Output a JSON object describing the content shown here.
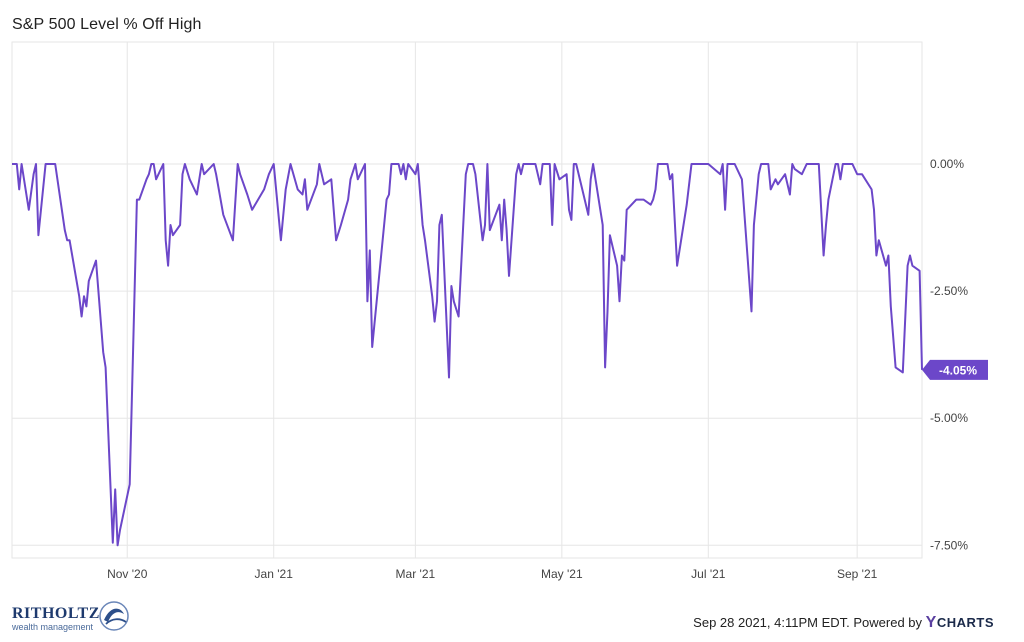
{
  "title": "S&P 500 Level % Off High",
  "footer": {
    "timestamp": "Sep 28 2021, 4:11PM EDT.",
    "powered_by": "Powered by",
    "brand": "CHARTS",
    "brand_y": "Y"
  },
  "logo": {
    "name": "RITHOLTZ",
    "sub": "wealth management"
  },
  "colors": {
    "line": "#6c47c9",
    "grid": "#e6e6e6",
    "badge": "#6c47c9"
  },
  "chart_data": {
    "type": "line",
    "title": "S&P 500 Level % Off High",
    "xlabel": "",
    "ylabel": "",
    "x_ticks": [
      "Nov '20",
      "Jan '21",
      "Mar '21",
      "May '21",
      "Jul '21",
      "Sep '21"
    ],
    "y_ticks": [
      "0.00%",
      "-2.50%",
      "-5.00%",
      "-7.50%"
    ],
    "y_tick_values": [
      0,
      -2.5,
      -5,
      -7.5
    ],
    "ylim": [
      -7.75,
      2.4
    ],
    "xlim": [
      "2020-09-14",
      "2021-09-28"
    ],
    "grid": true,
    "last_value_label": "-4.05%",
    "series": [
      {
        "values": [
          [
            "2020-09-14",
            0
          ],
          [
            "2020-09-16",
            0
          ],
          [
            "2020-09-17",
            -0.5
          ],
          [
            "2020-09-18",
            0
          ],
          [
            "2020-09-21",
            -0.9
          ],
          [
            "2020-09-23",
            -0.2
          ],
          [
            "2020-09-24",
            0
          ],
          [
            "2020-09-25",
            -1.4
          ],
          [
            "2020-09-28",
            0
          ],
          [
            "2020-10-02",
            0
          ],
          [
            "2020-10-06",
            -1.3
          ],
          [
            "2020-10-07",
            -1.5
          ],
          [
            "2020-10-08",
            -1.5
          ],
          [
            "2020-10-12",
            -2.6
          ],
          [
            "2020-10-13",
            -3.0
          ],
          [
            "2020-10-14",
            -2.6
          ],
          [
            "2020-10-15",
            -2.8
          ],
          [
            "2020-10-16",
            -2.3
          ],
          [
            "2020-10-19",
            -1.9
          ],
          [
            "2020-10-22",
            -3.7
          ],
          [
            "2020-10-23",
            -4.0
          ],
          [
            "2020-10-26",
            -7.45
          ],
          [
            "2020-10-27",
            -6.4
          ],
          [
            "2020-10-28",
            -7.5
          ],
          [
            "2020-10-29",
            -7.2
          ],
          [
            "2020-11-02",
            -6.3
          ],
          [
            "2020-11-05",
            -0.7
          ],
          [
            "2020-11-06",
            -0.7
          ],
          [
            "2020-11-09",
            -0.3
          ],
          [
            "2020-11-10",
            -0.2
          ],
          [
            "2020-11-11",
            0
          ],
          [
            "2020-11-12",
            0
          ],
          [
            "2020-11-13",
            -0.3
          ],
          [
            "2020-11-16",
            0
          ],
          [
            "2020-11-17",
            -1.5
          ],
          [
            "2020-11-18",
            -2.0
          ],
          [
            "2020-11-19",
            -1.2
          ],
          [
            "2020-11-20",
            -1.4
          ],
          [
            "2020-11-23",
            -1.2
          ],
          [
            "2020-11-24",
            -0.2
          ],
          [
            "2020-11-25",
            0
          ],
          [
            "2020-11-27",
            -0.3
          ],
          [
            "2020-11-30",
            -0.6
          ],
          [
            "2020-12-02",
            0
          ],
          [
            "2020-12-03",
            -0.2
          ],
          [
            "2020-12-07",
            0
          ],
          [
            "2020-12-08",
            -0.2
          ],
          [
            "2020-12-11",
            -1.0
          ],
          [
            "2020-12-15",
            -1.5
          ],
          [
            "2020-12-17",
            0
          ],
          [
            "2020-12-18",
            -0.2
          ],
          [
            "2020-12-21",
            -0.6
          ],
          [
            "2020-12-23",
            -0.9
          ],
          [
            "2020-12-28",
            -0.5
          ],
          [
            "2020-12-30",
            -0.2
          ],
          [
            "2021-01-01",
            0
          ],
          [
            "2021-01-04",
            -1.5
          ],
          [
            "2021-01-06",
            -0.5
          ],
          [
            "2021-01-08",
            0
          ],
          [
            "2021-01-11",
            -0.5
          ],
          [
            "2021-01-13",
            -0.6
          ],
          [
            "2021-01-14",
            -0.3
          ],
          [
            "2021-01-15",
            -0.9
          ],
          [
            "2021-01-19",
            -0.4
          ],
          [
            "2021-01-20",
            0
          ],
          [
            "2021-01-21",
            -0.2
          ],
          [
            "2021-01-22",
            -0.4
          ],
          [
            "2021-01-25",
            -0.3
          ],
          [
            "2021-01-27",
            -1.5
          ],
          [
            "2021-01-29",
            -1.2
          ],
          [
            "2021-02-01",
            -0.7
          ],
          [
            "2021-02-02",
            -0.3
          ],
          [
            "2021-02-04",
            0
          ],
          [
            "2021-02-05",
            -0.3
          ],
          [
            "2021-02-08",
            0
          ],
          [
            "2021-02-09",
            -2.7
          ],
          [
            "2021-02-10",
            -1.7
          ],
          [
            "2021-02-11",
            -3.6
          ],
          [
            "2021-02-17",
            -0.7
          ],
          [
            "2021-02-18",
            -0.6
          ],
          [
            "2021-02-19",
            0
          ],
          [
            "2021-02-22",
            0
          ],
          [
            "2021-02-23",
            -0.2
          ],
          [
            "2021-02-24",
            0
          ],
          [
            "2021-02-25",
            -0.3
          ],
          [
            "2021-02-26",
            0
          ],
          [
            "2021-03-01",
            -0.2
          ],
          [
            "2021-03-02",
            0
          ],
          [
            "2021-03-04",
            -1.2
          ],
          [
            "2021-03-05",
            -1.5
          ],
          [
            "2021-03-08",
            -2.6
          ],
          [
            "2021-03-09",
            -3.1
          ],
          [
            "2021-03-10",
            -2.7
          ],
          [
            "2021-03-11",
            -1.2
          ],
          [
            "2021-03-12",
            -1.0
          ],
          [
            "2021-03-15",
            -4.2
          ],
          [
            "2021-03-16",
            -2.4
          ],
          [
            "2021-03-17",
            -2.7
          ],
          [
            "2021-03-19",
            -3.0
          ],
          [
            "2021-03-22",
            -0.2
          ],
          [
            "2021-03-23",
            0
          ],
          [
            "2021-03-24",
            0
          ],
          [
            "2021-03-25",
            0
          ],
          [
            "2021-03-26",
            -0.2
          ],
          [
            "2021-03-29",
            -1.5
          ],
          [
            "2021-03-30",
            -1.2
          ],
          [
            "2021-03-31",
            0
          ],
          [
            "2021-04-01",
            -1.3
          ],
          [
            "2021-04-05",
            -0.8
          ],
          [
            "2021-04-06",
            -1.5
          ],
          [
            "2021-04-07",
            -0.7
          ],
          [
            "2021-04-08",
            -1.3
          ],
          [
            "2021-04-09",
            -2.2
          ],
          [
            "2021-04-12",
            -0.2
          ],
          [
            "2021-04-13",
            0
          ],
          [
            "2021-04-14",
            -0.2
          ],
          [
            "2021-04-15",
            0
          ],
          [
            "2021-04-16",
            0
          ],
          [
            "2021-04-19",
            0
          ],
          [
            "2021-04-20",
            0
          ],
          [
            "2021-04-21",
            -0.2
          ],
          [
            "2021-04-22",
            -0.4
          ],
          [
            "2021-04-23",
            0
          ],
          [
            "2021-04-26",
            0
          ],
          [
            "2021-04-27",
            -1.2
          ],
          [
            "2021-04-28",
            0
          ],
          [
            "2021-04-30",
            -0.3
          ],
          [
            "2021-05-03",
            -0.2
          ],
          [
            "2021-05-04",
            -0.9
          ],
          [
            "2021-05-05",
            -1.1
          ],
          [
            "2021-05-06",
            0
          ],
          [
            "2021-05-07",
            0
          ],
          [
            "2021-05-10",
            -0.6
          ],
          [
            "2021-05-12",
            -1.0
          ],
          [
            "2021-05-13",
            -0.3
          ],
          [
            "2021-05-14",
            0
          ],
          [
            "2021-05-17",
            -0.9
          ],
          [
            "2021-05-18",
            -1.2
          ],
          [
            "2021-05-19",
            -4.0
          ],
          [
            "2021-05-20",
            -2.9
          ],
          [
            "2021-05-21",
            -1.4
          ],
          [
            "2021-05-24",
            -2.0
          ],
          [
            "2021-05-25",
            -2.7
          ],
          [
            "2021-05-26",
            -1.8
          ],
          [
            "2021-05-27",
            -1.9
          ],
          [
            "2021-05-28",
            -0.9
          ],
          [
            "2021-06-01",
            -0.7
          ],
          [
            "2021-06-04",
            -0.7
          ],
          [
            "2021-06-07",
            -0.8
          ],
          [
            "2021-06-08",
            -0.7
          ],
          [
            "2021-06-09",
            -0.5
          ],
          [
            "2021-06-10",
            0
          ],
          [
            "2021-06-11",
            0
          ],
          [
            "2021-06-14",
            0
          ],
          [
            "2021-06-15",
            -0.3
          ],
          [
            "2021-06-16",
            -0.2
          ],
          [
            "2021-06-18",
            -2.0
          ],
          [
            "2021-06-22",
            -0.8
          ],
          [
            "2021-06-24",
            0
          ],
          [
            "2021-06-25",
            0
          ],
          [
            "2021-06-28",
            0
          ],
          [
            "2021-07-01",
            0
          ],
          [
            "2021-07-06",
            -0.2
          ],
          [
            "2021-07-07",
            0
          ],
          [
            "2021-07-08",
            -0.9
          ],
          [
            "2021-07-09",
            0
          ],
          [
            "2021-07-12",
            0
          ],
          [
            "2021-07-15",
            -0.3
          ],
          [
            "2021-07-19",
            -2.9
          ],
          [
            "2021-07-20",
            -1.2
          ],
          [
            "2021-07-22",
            -0.2
          ],
          [
            "2021-07-23",
            0
          ],
          [
            "2021-07-26",
            0
          ],
          [
            "2021-07-27",
            -0.5
          ],
          [
            "2021-07-29",
            -0.3
          ],
          [
            "2021-07-30",
            -0.4
          ],
          [
            "2021-08-02",
            -0.2
          ],
          [
            "2021-08-04",
            -0.6
          ],
          [
            "2021-08-05",
            0
          ],
          [
            "2021-08-06",
            -0.1
          ],
          [
            "2021-08-09",
            -0.2
          ],
          [
            "2021-08-11",
            0
          ],
          [
            "2021-08-13",
            0
          ],
          [
            "2021-08-16",
            0
          ],
          [
            "2021-08-18",
            -1.8
          ],
          [
            "2021-08-19",
            -1.2
          ],
          [
            "2021-08-20",
            -0.7
          ],
          [
            "2021-08-23",
            0
          ],
          [
            "2021-08-24",
            0
          ],
          [
            "2021-08-25",
            -0.3
          ],
          [
            "2021-08-26",
            0
          ],
          [
            "2021-08-27",
            0
          ],
          [
            "2021-08-30",
            0
          ],
          [
            "2021-09-01",
            -0.2
          ],
          [
            "2021-09-03",
            -0.2
          ],
          [
            "2021-09-07",
            -0.5
          ],
          [
            "2021-09-08",
            -0.9
          ],
          [
            "2021-09-09",
            -1.8
          ],
          [
            "2021-09-10",
            -1.5
          ],
          [
            "2021-09-13",
            -2.0
          ],
          [
            "2021-09-14",
            -1.8
          ],
          [
            "2021-09-15",
            -2.8
          ],
          [
            "2021-09-17",
            -4.0
          ],
          [
            "2021-09-20",
            -4.1
          ],
          [
            "2021-09-22",
            -2.0
          ],
          [
            "2021-09-23",
            -1.8
          ],
          [
            "2021-09-24",
            -2.0
          ],
          [
            "2021-09-27",
            -2.1
          ],
          [
            "2021-09-28",
            -4.05
          ]
        ]
      }
    ]
  }
}
